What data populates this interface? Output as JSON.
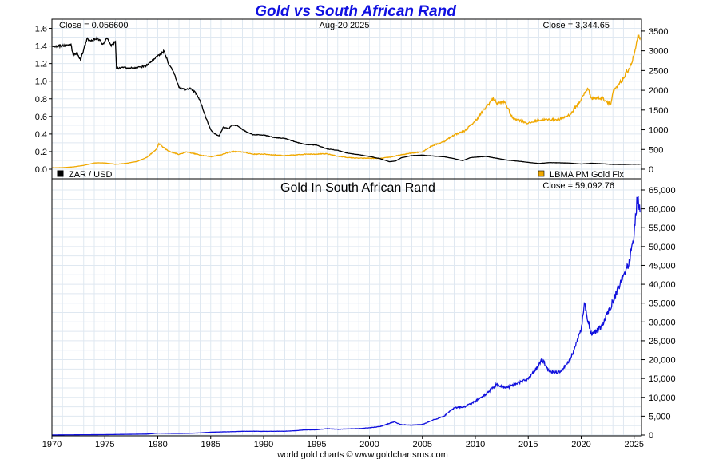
{
  "header": {
    "title": "Gold vs South African Rand",
    "date": "Aug-20 2025",
    "footer": "world gold charts © www.goldchartsrus.com"
  },
  "chart_data": [
    {
      "type": "line",
      "panel": "top",
      "x": {
        "min": 1970,
        "max": 2025.7,
        "ticks": [
          1970,
          1975,
          1980,
          1985,
          1990,
          1995,
          2000,
          2005,
          2010,
          2015,
          2020,
          2025
        ]
      },
      "y_left": {
        "min": 0,
        "max": 1.65,
        "ticks": [
          "0.0",
          "0.2",
          "0.4",
          "0.6",
          "0.8",
          "1.0",
          "1.2",
          "1.4",
          "1.6"
        ]
      },
      "y_right": {
        "min": 0,
        "max": 3680,
        "ticks": [
          "0",
          "500",
          "1000",
          "1500",
          "2000",
          "2500",
          "3000",
          "3500"
        ]
      },
      "close_left": "Close = 0.056600",
      "close_right": "Close = 3,344.65",
      "legend": [
        {
          "name": "ZAR / USD",
          "color": "#000000"
        },
        {
          "name": "LBMA PM Gold Fix",
          "color": "#f0a800"
        }
      ],
      "series": [
        {
          "name": "ZAR / USD",
          "axis": "left",
          "color": "#000000",
          "points": [
            [
              1970,
              1.4
            ],
            [
              1971,
              1.4
            ],
            [
              1971.8,
              1.42
            ],
            [
              1972.0,
              1.3
            ],
            [
              1972.4,
              1.32
            ],
            [
              1972.7,
              1.24
            ],
            [
              1973.0,
              1.36
            ],
            [
              1973.3,
              1.48
            ],
            [
              1973.8,
              1.46
            ],
            [
              1974.3,
              1.49
            ],
            [
              1974.8,
              1.42
            ],
            [
              1975.2,
              1.49
            ],
            [
              1975.6,
              1.4
            ],
            [
              1976.0,
              1.45
            ],
            [
              1976.1,
              1.15
            ],
            [
              1977,
              1.15
            ],
            [
              1978,
              1.15
            ],
            [
              1979,
              1.18
            ],
            [
              1980,
              1.29
            ],
            [
              1980.6,
              1.34
            ],
            [
              1981,
              1.2
            ],
            [
              1981.5,
              1.1
            ],
            [
              1982,
              0.93
            ],
            [
              1982.6,
              0.9
            ],
            [
              1983,
              0.92
            ],
            [
              1983.5,
              0.88
            ],
            [
              1984,
              0.78
            ],
            [
              1984.5,
              0.6
            ],
            [
              1985,
              0.45
            ],
            [
              1985.4,
              0.4
            ],
            [
              1985.8,
              0.38
            ],
            [
              1986.2,
              0.48
            ],
            [
              1986.7,
              0.46
            ],
            [
              1987,
              0.5
            ],
            [
              1987.5,
              0.5
            ],
            [
              1988,
              0.45
            ],
            [
              1989,
              0.39
            ],
            [
              1990,
              0.39
            ],
            [
              1991,
              0.36
            ],
            [
              1992,
              0.35
            ],
            [
              1993,
              0.31
            ],
            [
              1994,
              0.28
            ],
            [
              1995,
              0.275
            ],
            [
              1996,
              0.23
            ],
            [
              1997,
              0.215
            ],
            [
              1998,
              0.18
            ],
            [
              1999,
              0.165
            ],
            [
              2000,
              0.145
            ],
            [
              2001,
              0.12
            ],
            [
              2001.9,
              0.085
            ],
            [
              2002.5,
              0.095
            ],
            [
              2003,
              0.13
            ],
            [
              2004,
              0.155
            ],
            [
              2005,
              0.16
            ],
            [
              2006,
              0.15
            ],
            [
              2007,
              0.142
            ],
            [
              2008,
              0.12
            ],
            [
              2008.8,
              0.097
            ],
            [
              2009.5,
              0.13
            ],
            [
              2010,
              0.137
            ],
            [
              2011,
              0.145
            ],
            [
              2012,
              0.125
            ],
            [
              2013,
              0.103
            ],
            [
              2014,
              0.092
            ],
            [
              2015,
              0.078
            ],
            [
              2016,
              0.065
            ],
            [
              2017,
              0.075
            ],
            [
              2018,
              0.073
            ],
            [
              2019,
              0.069
            ],
            [
              2020,
              0.059
            ],
            [
              2021,
              0.068
            ],
            [
              2022,
              0.062
            ],
            [
              2023,
              0.054
            ],
            [
              2024,
              0.054
            ],
            [
              2025,
              0.0566
            ],
            [
              2025.6,
              0.0566
            ]
          ]
        },
        {
          "name": "LBMA PM Gold Fix",
          "axis": "right",
          "color": "#f0a800",
          "points": [
            [
              1970,
              35
            ],
            [
              1971,
              40
            ],
            [
              1972,
              58
            ],
            [
              1973,
              97
            ],
            [
              1974,
              159
            ],
            [
              1975,
              160
            ],
            [
              1976,
              125
            ],
            [
              1977,
              148
            ],
            [
              1978,
              193
            ],
            [
              1979,
              306
            ],
            [
              1979.9,
              512
            ],
            [
              1980.1,
              650
            ],
            [
              1980.5,
              560
            ],
            [
              1981,
              460
            ],
            [
              1982,
              375
            ],
            [
              1982.7,
              440
            ],
            [
              1983,
              424
            ],
            [
              1984,
              360
            ],
            [
              1985,
              317
            ],
            [
              1986,
              368
            ],
            [
              1987,
              447
            ],
            [
              1988,
              437
            ],
            [
              1989,
              381
            ],
            [
              1990,
              383
            ],
            [
              1991,
              362
            ],
            [
              1992,
              344
            ],
            [
              1993,
              360
            ],
            [
              1994,
              384
            ],
            [
              1995,
              384
            ],
            [
              1996,
              388
            ],
            [
              1997,
              331
            ],
            [
              1998,
              294
            ],
            [
              1999,
              279
            ],
            [
              2000,
              279
            ],
            [
              2001,
              271
            ],
            [
              2002,
              310
            ],
            [
              2003,
              363
            ],
            [
              2004,
              409
            ],
            [
              2005,
              444
            ],
            [
              2006,
              603
            ],
            [
              2007,
              695
            ],
            [
              2008,
              872
            ],
            [
              2009,
              972
            ],
            [
              2010,
              1225
            ],
            [
              2011,
              1572
            ],
            [
              2011.7,
              1800
            ],
            [
              2012,
              1669
            ],
            [
              2012.8,
              1700
            ],
            [
              2013.5,
              1300
            ],
            [
              2014,
              1266
            ],
            [
              2015,
              1160
            ],
            [
              2016,
              1250
            ],
            [
              2017,
              1257
            ],
            [
              2018,
              1268
            ],
            [
              2019,
              1393
            ],
            [
              2020,
              1770
            ],
            [
              2020.6,
              2050
            ],
            [
              2021,
              1800
            ],
            [
              2022,
              1800
            ],
            [
              2022.8,
              1650
            ],
            [
              2023,
              1940
            ],
            [
              2024,
              2300
            ],
            [
              2024.8,
              2700
            ],
            [
              2025,
              2900
            ],
            [
              2025.4,
              3350
            ],
            [
              2025.6,
              3344.65
            ]
          ]
        }
      ]
    },
    {
      "type": "line",
      "panel": "bottom",
      "title": "Gold In South African Rand",
      "close_label": "Close = 59,092.76",
      "x": {
        "min": 1970,
        "max": 2025.7,
        "ticks": [
          "1970",
          "1975",
          "1980",
          "1985",
          "1990",
          "1995",
          "2000",
          "2005",
          "2010",
          "2015",
          "2020",
          "2025"
        ]
      },
      "y_right": {
        "min": 0,
        "max": 65000,
        "ticks": [
          "0",
          "5,000",
          "10,000",
          "15,000",
          "20,000",
          "25,000",
          "30,000",
          "35,000",
          "40,000",
          "45,000",
          "50,000",
          "55,000",
          "60,000",
          "65,000"
        ]
      },
      "series": [
        {
          "name": "Gold In South African Rand",
          "color": "#1010dd",
          "points": [
            [
              1970,
              25
            ],
            [
              1975,
              110
            ],
            [
              1979,
              262
            ],
            [
              1980,
              500
            ],
            [
              1981,
              460
            ],
            [
              1982,
              420
            ],
            [
              1983,
              470
            ],
            [
              1984,
              570
            ],
            [
              1985,
              760
            ],
            [
              1986,
              830
            ],
            [
              1987,
              890
            ],
            [
              1988,
              990
            ],
            [
              1989,
              1000
            ],
            [
              1990,
              985
            ],
            [
              1991,
              1000
            ],
            [
              1992,
              1015
            ],
            [
              1993,
              1160
            ],
            [
              1994,
              1370
            ],
            [
              1995,
              1400
            ],
            [
              1996,
              1700
            ],
            [
              1997,
              1530
            ],
            [
              1998,
              1650
            ],
            [
              1999,
              1700
            ],
            [
              2000,
              1930
            ],
            [
              2001,
              2250
            ],
            [
              2002.0,
              3200
            ],
            [
              2002.3,
              3500
            ],
            [
              2003,
              2750
            ],
            [
              2004,
              2640
            ],
            [
              2005,
              2800
            ],
            [
              2006,
              4000
            ],
            [
              2007,
              4900
            ],
            [
              2008,
              7200
            ],
            [
              2009,
              7500
            ],
            [
              2010,
              8950
            ],
            [
              2011,
              10800
            ],
            [
              2012,
              13400
            ],
            [
              2013,
              12600
            ],
            [
              2014,
              13750
            ],
            [
              2015,
              14900
            ],
            [
              2016,
              18500
            ],
            [
              2016.3,
              20000
            ],
            [
              2017,
              16800
            ],
            [
              2018,
              16600
            ],
            [
              2019,
              20200
            ],
            [
              2020,
              28000
            ],
            [
              2020.3,
              35000
            ],
            [
              2020.9,
              27000
            ],
            [
              2021,
              26500
            ],
            [
              2022,
              29000
            ],
            [
              2023,
              35500
            ],
            [
              2024,
              42500
            ],
            [
              2024.5,
              45000
            ],
            [
              2025,
              53000
            ],
            [
              2025.3,
              63000
            ],
            [
              2025.6,
              59092.76
            ]
          ]
        }
      ]
    }
  ]
}
